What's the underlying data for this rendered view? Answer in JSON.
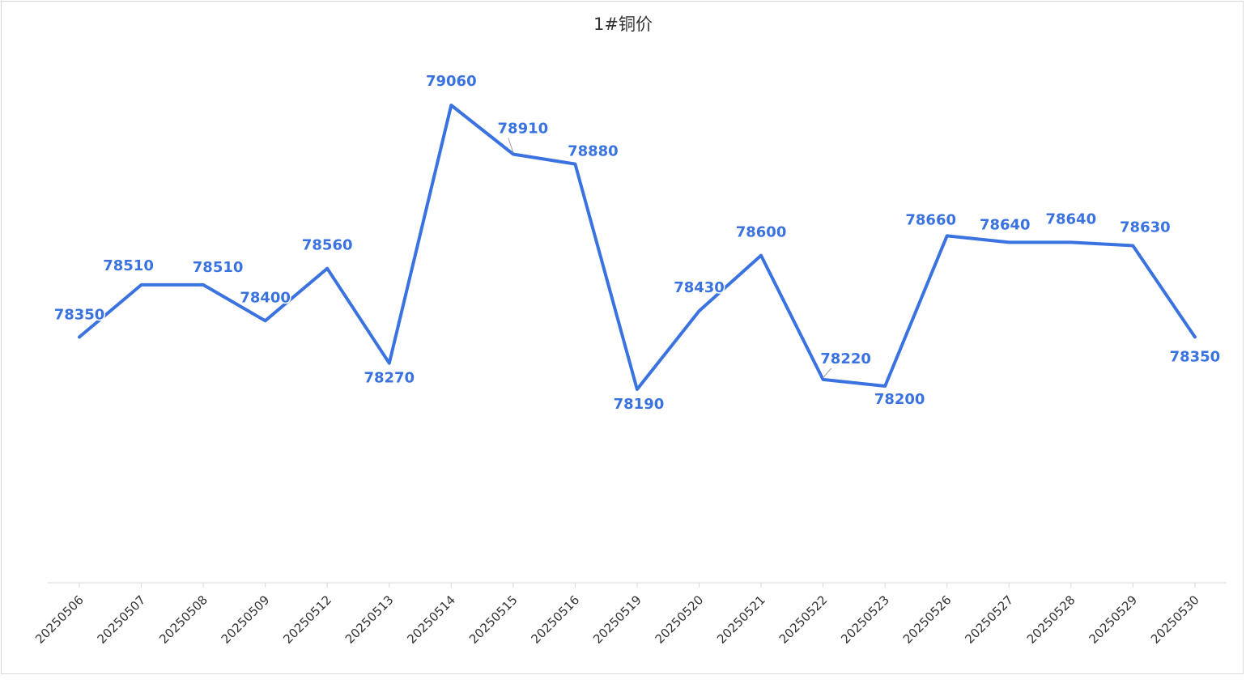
{
  "chart_data": {
    "type": "line",
    "title": "1#铜价",
    "xlabel": "",
    "ylabel": "",
    "categories": [
      "20250506",
      "20250507",
      "20250508",
      "20250509",
      "20250512",
      "20250513",
      "20250514",
      "20250515",
      "20250516",
      "20250519",
      "20250520",
      "20250521",
      "20250522",
      "20250523",
      "20250526",
      "20250527",
      "20250528",
      "20250529",
      "20250530"
    ],
    "series": [
      {
        "values": [
          78350,
          78510,
          78510,
          78400,
          78560,
          78270,
          79060,
          78910,
          78880,
          78190,
          78430,
          78600,
          78220,
          78200,
          78660,
          78640,
          78640,
          78630,
          78350
        ]
      }
    ],
    "ylim": [
      77710,
      79250
    ],
    "grid": false,
    "legend": "none",
    "data_labels": true,
    "colors": {
      "line": "#3a73e0",
      "label": "#3a73e0",
      "axis": "#d9d9d9",
      "drop_line": "#b8cdf2"
    }
  }
}
